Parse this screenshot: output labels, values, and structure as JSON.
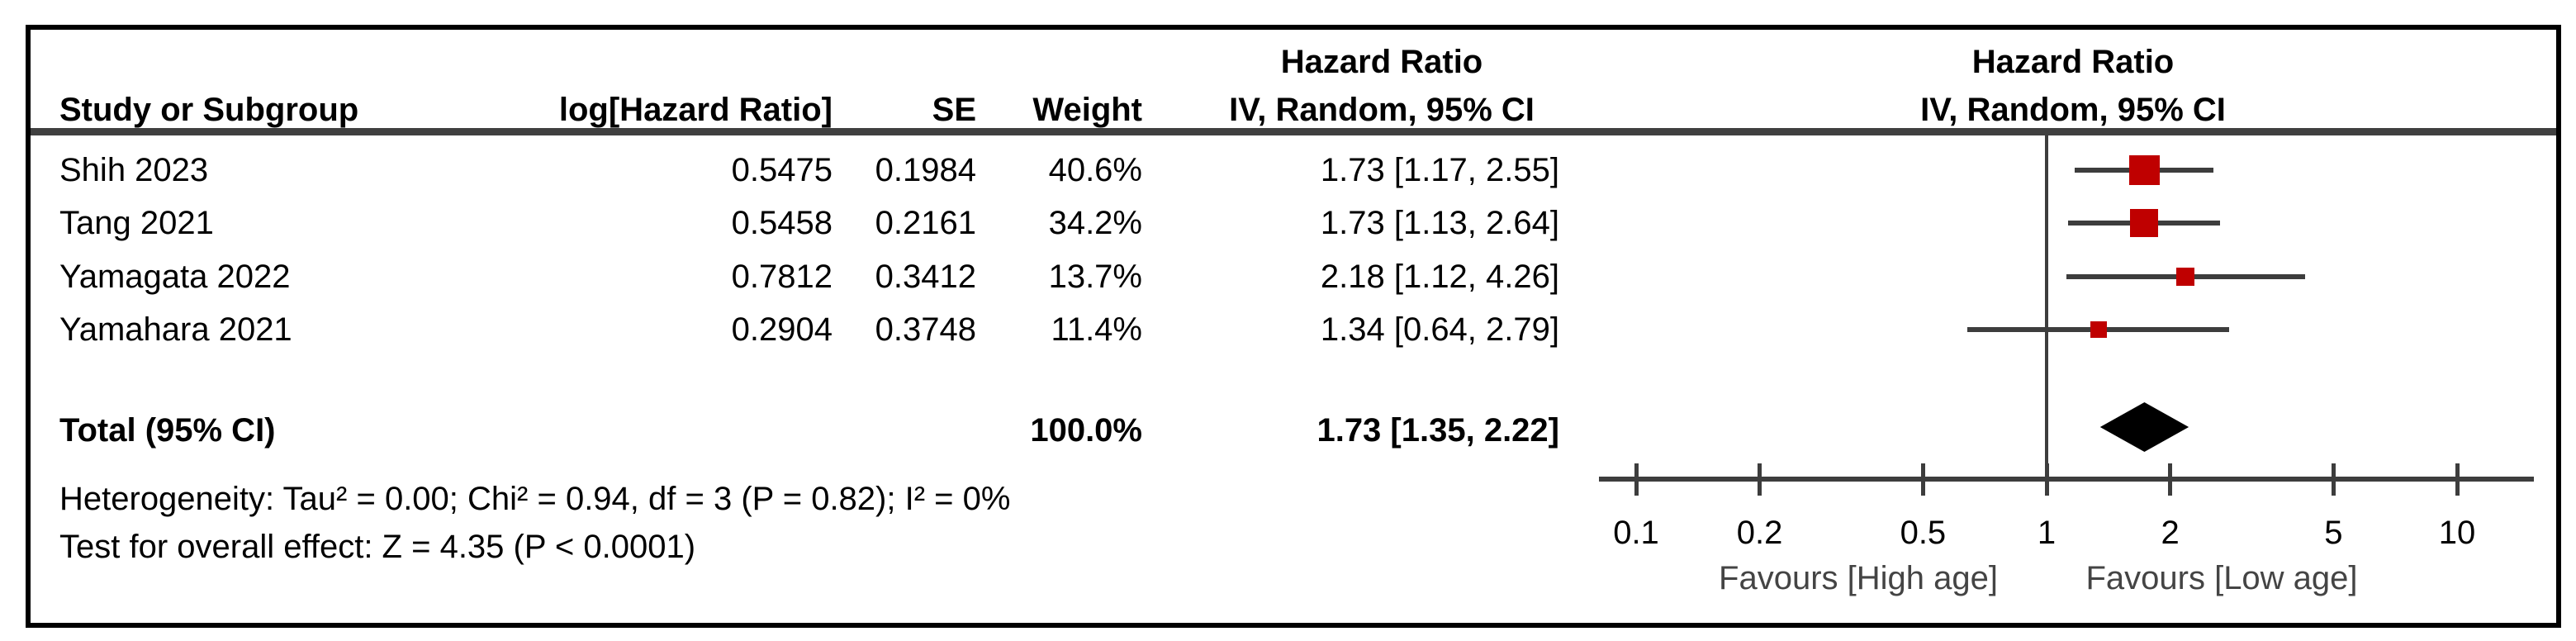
{
  "header": {
    "col_study": "Study or Subgroup",
    "col_log_hr": "log[Hazard Ratio]",
    "col_se": "SE",
    "col_weight": "Weight",
    "effect_title": "Hazard Ratio",
    "effect_method": "IV, Random, 95% CI",
    "plot_title": "Hazard Ratio",
    "plot_method": "IV, Random, 95% CI"
  },
  "chart_data": {
    "type": "forest",
    "scale": "log10",
    "effect_measure": "Hazard Ratio",
    "model": "IV, Random, 95% CI",
    "studies": [
      {
        "label": "Shih 2023",
        "log_hr": "0.5475",
        "se": "0.1984",
        "weight": "40.6%",
        "weight_pct": 40.6,
        "hr": 1.73,
        "ci_low": 1.17,
        "ci_high": 2.55,
        "ci_text": "1.73 [1.17, 2.55]"
      },
      {
        "label": "Tang 2021",
        "log_hr": "0.5458",
        "se": "0.2161",
        "weight": "34.2%",
        "weight_pct": 34.2,
        "hr": 1.73,
        "ci_low": 1.13,
        "ci_high": 2.64,
        "ci_text": "1.73 [1.13, 2.64]"
      },
      {
        "label": "Yamagata 2022",
        "log_hr": "0.7812",
        "se": "0.3412",
        "weight": "13.7%",
        "weight_pct": 13.7,
        "hr": 2.18,
        "ci_low": 1.12,
        "ci_high": 4.26,
        "ci_text": "2.18 [1.12, 4.26]"
      },
      {
        "label": "Yamahara 2021",
        "log_hr": "0.2904",
        "se": "0.3748",
        "weight": "11.4%",
        "weight_pct": 11.4,
        "hr": 1.34,
        "ci_low": 0.64,
        "ci_high": 2.79,
        "ci_text": "1.34 [0.64, 2.79]"
      }
    ],
    "total": {
      "label": "Total (95% CI)",
      "weight": "100.0%",
      "hr": 1.73,
      "ci_low": 1.35,
      "ci_high": 2.22,
      "ci_text": "1.73 [1.35, 2.22]"
    },
    "footer": {
      "heterogeneity": "Heterogeneity: Tau² = 0.00; Chi² = 0.94, df = 3 (P = 0.82); I² = 0%",
      "overall_effect": "Test for overall effect: Z = 4.35 (P < 0.0001)"
    },
    "axis": {
      "ticks": [
        0.1,
        0.2,
        0.5,
        1,
        2,
        5,
        10
      ],
      "range": [
        0.08,
        15.4
      ],
      "null_line": 1
    },
    "favours": {
      "left": "Favours [High age]",
      "right": "Favours [Low age]"
    },
    "colors": {
      "marker": "#bf0000",
      "diamond": "#000000",
      "line": "#3d3d3d",
      "rule": "#404040"
    }
  }
}
